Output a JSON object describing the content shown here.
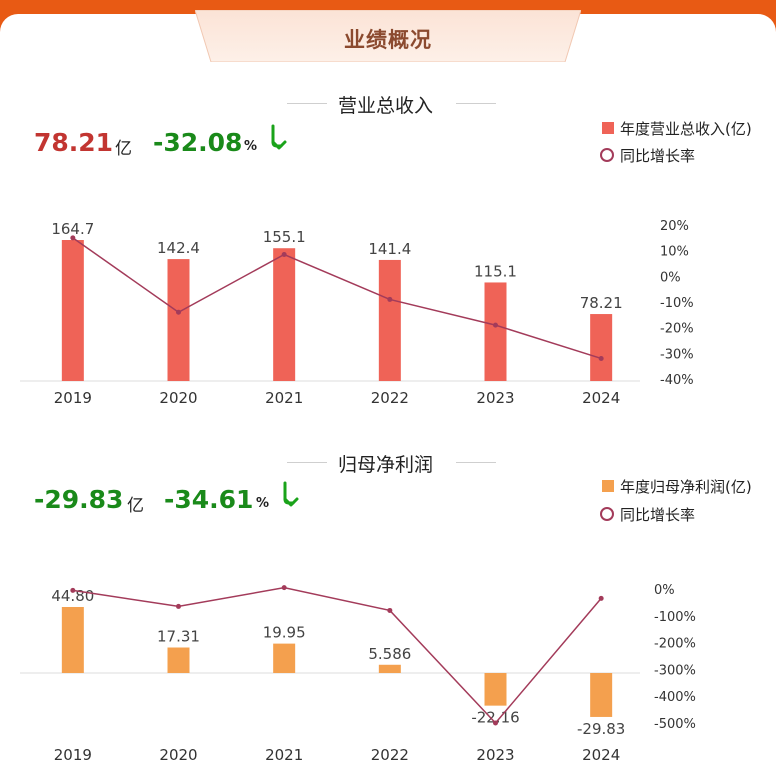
{
  "header": {
    "title": "业绩概况"
  },
  "colors": {
    "bg": "#e85a14",
    "revenue_bar": "#ef6357",
    "profit_bar": "#f4a04e",
    "line": "#a33b5a",
    "up": "#c23531",
    "down": "#1a8a1a"
  },
  "revenue": {
    "section_title": "营业总收入",
    "kpi_value": "78.21",
    "kpi_unit": "亿",
    "kpi_change": "-32.08",
    "kpi_pct": "%",
    "trend_icon": "arrow-down-icon",
    "legend_bar": "年度营业总收入(亿)",
    "legend_line": "同比增长率"
  },
  "profit": {
    "section_title": "归母净利润",
    "kpi_value": "-29.83",
    "kpi_unit": "亿",
    "kpi_change": "-34.61",
    "kpi_pct": "%",
    "trend_icon": "arrow-down-icon",
    "legend_bar": "年度归母净利润(亿)",
    "legend_line": "同比增长率"
  },
  "chart_data": [
    {
      "type": "bar",
      "categories": [
        "2019",
        "2020",
        "2021",
        "2022",
        "2023",
        "2024"
      ],
      "series": [
        {
          "name": "年度营业总收入(亿)",
          "type": "bar",
          "values": [
            164.7,
            142.4,
            155.1,
            141.4,
            115.1,
            78.21
          ],
          "labels": [
            "164.7",
            "142.4",
            "155.1",
            "141.4",
            "115.1",
            "78.21"
          ]
        },
        {
          "name": "同比增长率",
          "type": "line",
          "axis": "right",
          "values": [
            15,
            -14,
            8.5,
            -9,
            -19,
            -32
          ]
        }
      ],
      "ylim": [
        0,
        180
      ],
      "y2lim": [
        -40,
        20
      ],
      "y2ticks": [
        "20%",
        "10%",
        "0%",
        "-10%",
        "-20%",
        "-30%",
        "-40%"
      ]
    },
    {
      "type": "bar",
      "categories": [
        "2019",
        "2020",
        "2021",
        "2022",
        "2023",
        "2024"
      ],
      "series": [
        {
          "name": "年度归母净利润(亿)",
          "type": "bar",
          "values": [
            44.8,
            17.31,
            19.95,
            5.586,
            -22.16,
            -29.83
          ],
          "labels": [
            "44.80",
            "17.31",
            "19.95",
            "5.586",
            "-22.16",
            "-29.83"
          ]
        },
        {
          "name": "同比增长率",
          "type": "line",
          "axis": "right",
          "values": [
            -5,
            -65,
            5,
            -80,
            -500,
            -35
          ]
        }
      ],
      "ylim": [
        -40,
        80
      ],
      "y2lim": [
        -500,
        0
      ],
      "y2ticks": [
        "0%",
        "-100%",
        "-200%",
        "-300%",
        "-400%",
        "-500%"
      ]
    }
  ]
}
